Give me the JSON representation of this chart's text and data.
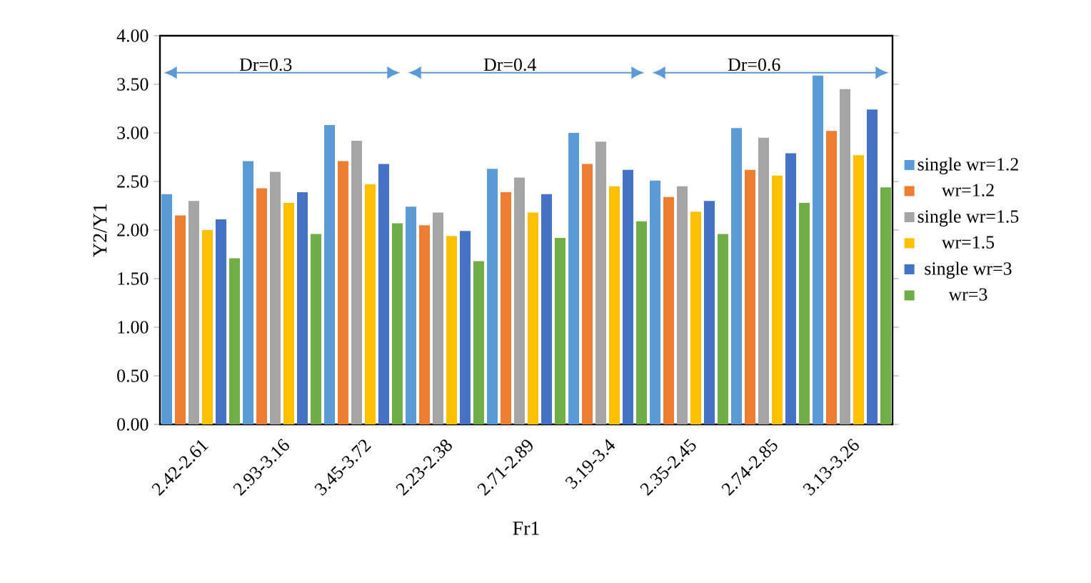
{
  "chart_data": {
    "type": "bar",
    "xlabel": "Fr1",
    "ylabel": "Y2/Y1",
    "categories": [
      "2.42-2.61",
      "2.93-3.16",
      "3.45-3.72",
      "2.23-2.38",
      "2.71-2.89",
      "3.19-3.4",
      "2.35-2.45",
      "2.74-2.85",
      "3.13-3.26"
    ],
    "series": [
      {
        "name": "single wr=1.2",
        "color": "#5b9bd5",
        "values": [
          2.37,
          2.71,
          3.08,
          2.24,
          2.63,
          3.0,
          2.51,
          3.05,
          3.59
        ]
      },
      {
        "name": "wr=1.2",
        "color": "#ed7d31",
        "values": [
          2.15,
          2.43,
          2.71,
          2.05,
          2.39,
          2.68,
          2.34,
          2.62,
          3.02
        ]
      },
      {
        "name": "single wr=1.5",
        "color": "#a5a5a5",
        "values": [
          2.3,
          2.6,
          2.92,
          2.18,
          2.54,
          2.91,
          2.45,
          2.95,
          3.45
        ]
      },
      {
        "name": "wr=1.5",
        "color": "#ffc000",
        "values": [
          2.0,
          2.28,
          2.47,
          1.94,
          2.18,
          2.45,
          2.19,
          2.56,
          2.77
        ]
      },
      {
        "name": "single wr=3",
        "color": "#4472c4",
        "values": [
          2.11,
          2.39,
          2.68,
          1.99,
          2.37,
          2.62,
          2.3,
          2.79,
          3.24
        ]
      },
      {
        "name": "wr=3",
        "color": "#70ad47",
        "values": [
          1.71,
          1.96,
          2.07,
          1.68,
          1.92,
          2.09,
          1.96,
          2.28,
          2.44
        ]
      }
    ],
    "ylim": [
      0,
      4
    ],
    "yticks": [
      {
        "value": 0,
        "label": "0.00"
      },
      {
        "value": 0.5,
        "label": "0.50"
      },
      {
        "value": 1,
        "label": "1.00"
      },
      {
        "value": 1.5,
        "label": "1.50"
      },
      {
        "value": 2,
        "label": "2.00"
      },
      {
        "value": 2.5,
        "label": "2.50"
      },
      {
        "value": 3,
        "label": "3.00"
      },
      {
        "value": 3.5,
        "label": "3.50"
      },
      {
        "value": 4,
        "label": "4.00"
      }
    ],
    "annotations": [
      "Dr=0.3",
      "Dr=0.4",
      "Dr=0.6"
    ],
    "legend": "right",
    "grid": false
  }
}
